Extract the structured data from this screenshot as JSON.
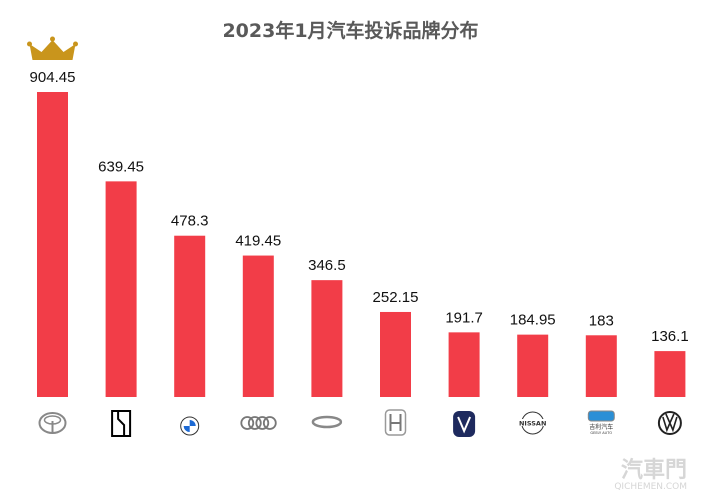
{
  "chart_data": {
    "type": "bar",
    "title": "2023年1月汽车投诉品牌分布",
    "categories": [
      "toyota-logo",
      "s-box-logo",
      "bmw-logo",
      "audi-logo",
      "chery-logo",
      "honda-logo",
      "changan-logo",
      "nissan-logo",
      "geely-logo",
      "volkswagen-logo"
    ],
    "values": [
      904.45,
      639.45,
      478.3,
      419.45,
      346.5,
      252.15,
      191.7,
      184.95,
      183,
      136.1
    ],
    "data_labels": [
      "904.45",
      "639.45",
      "478.3",
      "419.45",
      "346.5",
      "252.15",
      "191.7",
      "184.95",
      "183",
      "136.1"
    ],
    "bar_color": "#f23d48",
    "ylim": [
      0,
      904.45
    ],
    "grid": false,
    "annotations": {
      "top_marker": "crown-icon"
    },
    "logo_text": {
      "nissan": "NISSAN",
      "geely_cn": "吉利汽车",
      "geely_en": "GEELY AUTO"
    }
  },
  "watermark": {
    "cn": "汽車門",
    "en": "QICHEMEN.COM"
  }
}
